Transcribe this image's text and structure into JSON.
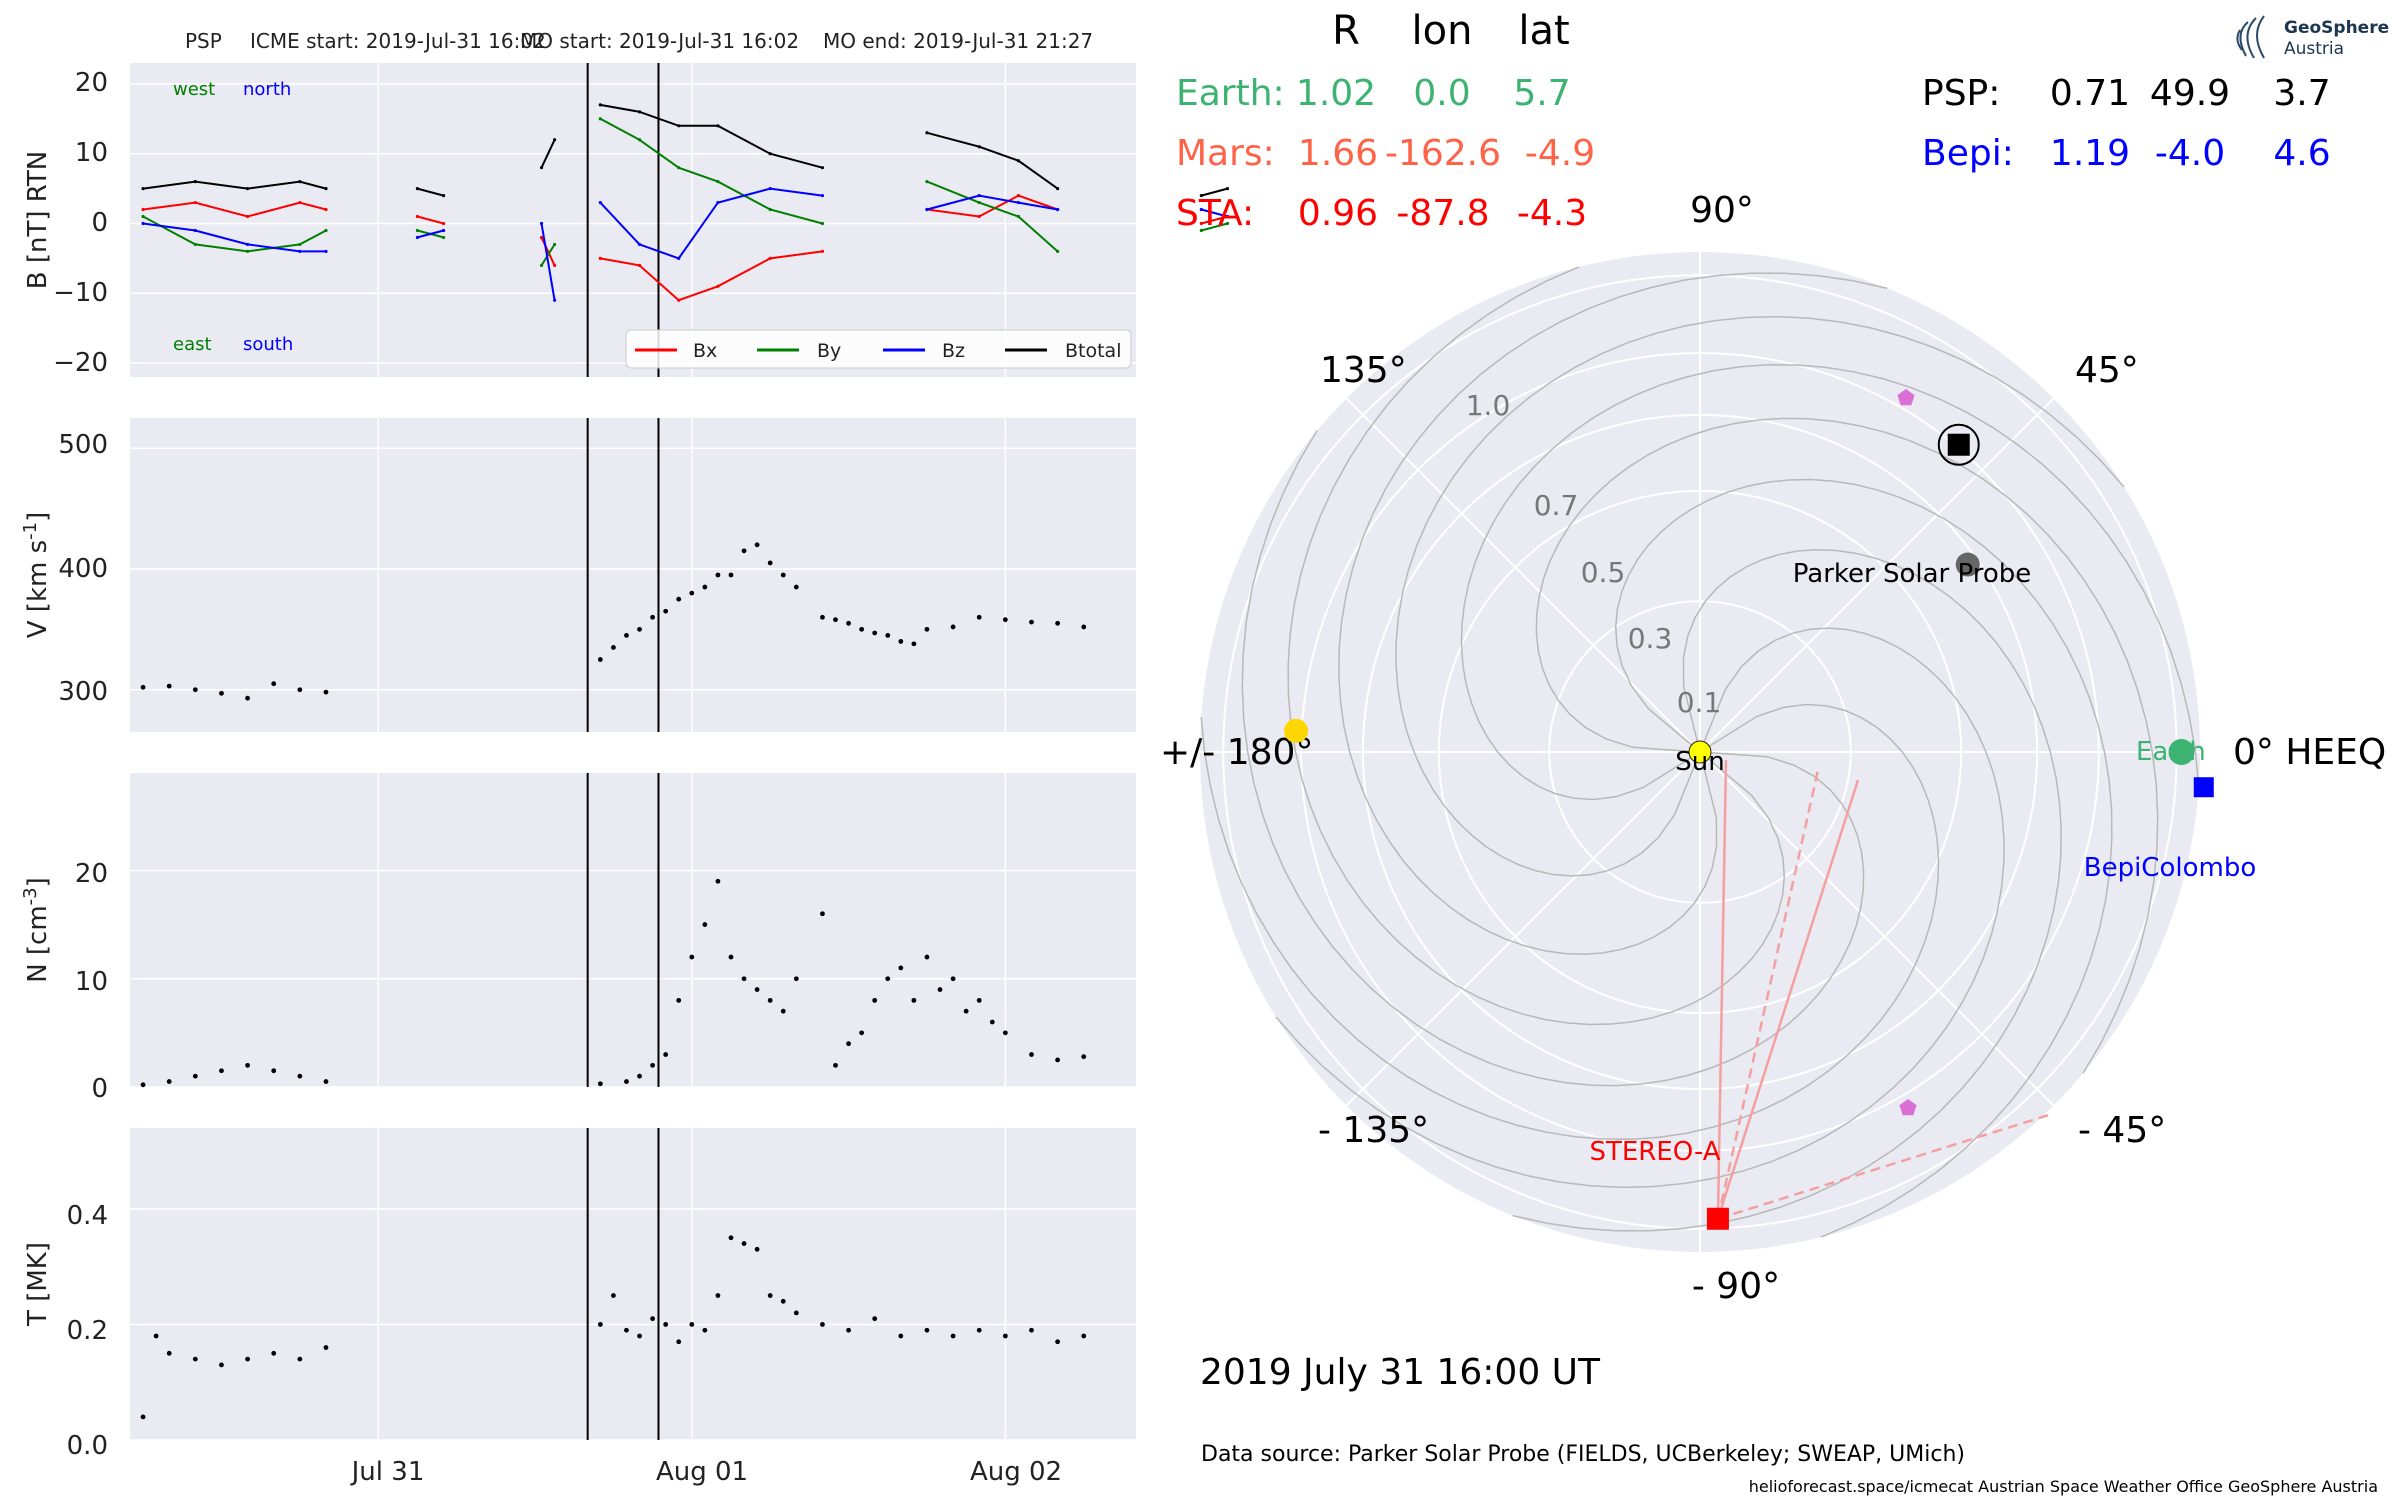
{
  "header": {
    "spacecraft": "PSP",
    "icme_start": "ICME start: 2019-Jul-31 16:02",
    "mo_start": "MO start: 2019-Jul-31 16:02",
    "mo_end": "MO end: 2019-Jul-31 21:27"
  },
  "logo": {
    "name": "GeoSphere",
    "sub": "Austria"
  },
  "panels": {
    "b_ylabel": "B [nT] RTN",
    "v_ylabel": "V [km s$^{-1}$]",
    "n_ylabel": "N [cm$^{-3}$]",
    "t_ylabel": "T [MK]",
    "x_ticks": [
      "Jul 31",
      "Aug 01",
      "Aug 02"
    ],
    "b_yticks": [
      "20",
      "10",
      "0",
      "−10",
      "−20"
    ],
    "v_yticks": [
      "500",
      "400",
      "300"
    ],
    "n_yticks": [
      "20",
      "10",
      "0"
    ],
    "t_yticks": [
      "0.4",
      "0.2",
      "0.0"
    ],
    "dir_west": "west",
    "dir_north": "north",
    "dir_east": "east",
    "dir_south": "south"
  },
  "legend": [
    "Bx",
    "By",
    "Bz",
    "Btotal"
  ],
  "colors": {
    "bx": "#ff0000",
    "by": "#008000",
    "bz": "#0000ff",
    "btotal": "#000000",
    "earth": "#3cb371",
    "mars": "#ff6347",
    "sta": "#ff0000",
    "bepi": "#0000ff",
    "psp": "#000000"
  },
  "positions": {
    "head_r": "R",
    "head_lon": "lon",
    "head_lat": "lat",
    "earth": {
      "label": "Earth:",
      "r": "1.02",
      "lon": "0.0",
      "lat": "5.7"
    },
    "mars": {
      "label": "Mars:",
      "r": "1.66",
      "lon": "-162.6",
      "lat": "-4.9"
    },
    "sta": {
      "label": "STA:",
      "r": "0.96",
      "lon": "-87.8",
      "lat": "-4.3"
    },
    "psp": {
      "label": "PSP:",
      "r": "0.71",
      "lon": "49.9",
      "lat": "3.7"
    },
    "bepi": {
      "label": "Bepi:",
      "r": "1.19",
      "lon": "-4.0",
      "lat": "4.6"
    }
  },
  "polar": {
    "angle_labels": {
      "a0": "0° HEEQ",
      "a45": "45°",
      "a90": "90°",
      "a135": "135°",
      "a180": "+/- 180°",
      "am135": "- 135°",
      "am90": "- 90°",
      "am45": "- 45°"
    },
    "radial_labels": [
      "0.1",
      "0.3",
      "0.5",
      "0.7",
      "1.0"
    ],
    "labels": {
      "sun": "Sun",
      "psp": "Parker Solar Probe",
      "earth": "Earth",
      "bepi": "BepiColombo",
      "sta": "STEREO-A"
    }
  },
  "date": "2019 July 31  16:00 UT",
  "source": "Data source: Parker Solar Probe (FIELDS, UCBerkeley; SWEAP, UMich)",
  "footer": "helioforecast.space/icmecat   Austrian Space Weather Office   GeoSphere Austria",
  "chart_data": [
    {
      "type": "line",
      "title": "PSP    ICME start: 2019-Jul-31 16:02   MO start: 2019-Jul-31 16:02   MO end: 2019-Jul-31 21:27",
      "ylabel": "B [nT] RTN",
      "ylim": [
        -22,
        23
      ],
      "xlim": [
        "2019-07-30 05:00",
        "2019-08-02 10:00"
      ],
      "x_unit": "hours after 2019-07-30 00:00",
      "event_lines": [
        "2019-07-31 16:02",
        "2019-07-31 21:27"
      ],
      "legend": "lower right",
      "grid": true,
      "segments": [
        [
          6,
          20
        ],
        [
          26,
          30
        ],
        [
          36,
          38
        ],
        [
          40,
          58
        ],
        [
          45,
          78
        ],
        [
          56,
          74
        ],
        [
          87,
          90
        ]
      ],
      "series": [
        {
          "name": "Bx",
          "x": [
            6,
            10,
            14,
            18,
            20,
            27,
            29,
            36.5,
            37.5,
            41,
            44,
            47,
            50,
            54,
            58,
            66,
            70,
            73,
            76,
            87,
            89
          ],
          "values": [
            2,
            3,
            1,
            3,
            2,
            1,
            0,
            -2,
            -6,
            -5,
            -6,
            -11,
            -9,
            -5,
            -4,
            2,
            1,
            4,
            2,
            0,
            1
          ]
        },
        {
          "name": "By",
          "x": [
            6,
            10,
            14,
            18,
            20,
            27,
            29,
            36.5,
            37.5,
            41,
            44,
            47,
            50,
            54,
            58,
            66,
            70,
            73,
            76,
            87,
            89
          ],
          "values": [
            1,
            -3,
            -4,
            -3,
            -1,
            -1,
            -2,
            -6,
            -3,
            15,
            12,
            8,
            6,
            2,
            0,
            6,
            3,
            1,
            -4,
            -1,
            0
          ]
        },
        {
          "name": "Bz",
          "x": [
            6,
            10,
            14,
            18,
            20,
            27,
            29,
            36.5,
            37.5,
            41,
            44,
            47,
            50,
            54,
            58,
            66,
            70,
            73,
            76,
            87,
            89
          ],
          "values": [
            0,
            -1,
            -3,
            -4,
            -4,
            -2,
            -1,
            0,
            -11,
            3,
            -3,
            -5,
            3,
            5,
            4,
            2,
            4,
            3,
            2,
            2,
            1
          ]
        },
        {
          "name": "Btotal",
          "x": [
            6,
            10,
            14,
            18,
            20,
            27,
            29,
            36.5,
            37.5,
            41,
            44,
            47,
            50,
            54,
            58,
            66,
            70,
            73,
            76,
            87,
            89
          ],
          "values": [
            5,
            6,
            5,
            6,
            5,
            5,
            4,
            8,
            12,
            17,
            16,
            14,
            14,
            10,
            8,
            13,
            11,
            9,
            5,
            4,
            5
          ]
        }
      ]
    },
    {
      "type": "scatter",
      "ylabel": "V [km s$^{-1}$]",
      "ylim": [
        265,
        525
      ],
      "series": [
        {
          "name": "V",
          "x": [
            6,
            8,
            10,
            12,
            14,
            16,
            18,
            20,
            41,
            42,
            43,
            44,
            45,
            46,
            47,
            48,
            49,
            50,
            51,
            52,
            53,
            54,
            55,
            56,
            58,
            59,
            60,
            61,
            62,
            63,
            64,
            65,
            66,
            68,
            70,
            72,
            74,
            76,
            78
          ],
          "values": [
            302,
            303,
            300,
            297,
            293,
            305,
            300,
            298,
            325,
            335,
            345,
            350,
            360,
            365,
            375,
            380,
            385,
            395,
            395,
            415,
            420,
            405,
            395,
            385,
            360,
            358,
            355,
            350,
            347,
            345,
            340,
            338,
            350,
            352,
            360,
            358,
            356,
            355,
            352
          ]
        }
      ]
    },
    {
      "type": "scatter",
      "ylabel": "N [cm$^{-3}$]",
      "ylim": [
        0,
        29
      ],
      "series": [
        {
          "name": "N",
          "x": [
            6,
            8,
            10,
            12,
            14,
            16,
            18,
            20,
            41,
            43,
            44,
            45,
            46,
            47,
            48,
            49,
            50,
            51,
            52,
            53,
            54,
            55,
            56,
            58,
            59,
            60,
            61,
            62,
            63,
            64,
            65,
            66,
            67,
            68,
            69,
            70,
            71,
            72,
            74,
            76,
            78
          ],
          "values": [
            0.2,
            0.5,
            1,
            1.5,
            2,
            1.5,
            1,
            0.5,
            0.3,
            0.5,
            1,
            2,
            3,
            8,
            12,
            15,
            19,
            12,
            10,
            9,
            8,
            7,
            10,
            16,
            2,
            4,
            5,
            8,
            10,
            11,
            8,
            12,
            9,
            10,
            7,
            8,
            6,
            5,
            3,
            2.5,
            2.8
          ]
        }
      ]
    },
    {
      "type": "scatter",
      "ylabel": "T [MK]",
      "ylim": [
        0,
        0.54
      ],
      "series": [
        {
          "name": "T",
          "x": [
            6,
            7,
            8,
            10,
            12,
            14,
            16,
            18,
            20,
            41,
            42,
            43,
            44,
            45,
            46,
            47,
            48,
            49,
            50,
            51,
            52,
            53,
            54,
            55,
            56,
            58,
            60,
            62,
            64,
            66,
            68,
            70,
            72,
            74,
            76,
            78
          ],
          "values": [
            0.04,
            0.18,
            0.15,
            0.14,
            0.13,
            0.14,
            0.15,
            0.14,
            0.16,
            0.2,
            0.25,
            0.19,
            0.18,
            0.21,
            0.2,
            0.17,
            0.2,
            0.19,
            0.25,
            0.35,
            0.34,
            0.33,
            0.25,
            0.24,
            0.22,
            0.2,
            0.19,
            0.21,
            0.18,
            0.19,
            0.18,
            0.19,
            0.18,
            0.19,
            0.17,
            0.18
          ]
        }
      ]
    },
    {
      "type": "scatter",
      "polar": true,
      "title": "2019 July 31  16:00 UT",
      "theta_unit": "deg HEEQ longitude",
      "r_unit": "AU",
      "rlim": [
        0,
        1.1
      ],
      "r_ticks": [
        0.1,
        0.3,
        0.5,
        0.7,
        1.0
      ],
      "points": [
        {
          "name": "Sun",
          "lon": 0,
          "r": 0
        },
        {
          "name": "Earth",
          "lon": 0.0,
          "r": 1.02
        },
        {
          "name": "Mars",
          "lon": -162.6,
          "r": 1.66
        },
        {
          "name": "STEREO-A",
          "lon": -87.8,
          "r": 0.96
        },
        {
          "name": "Parker Solar Probe",
          "lon": 49.9,
          "r": 0.71
        },
        {
          "name": "BepiColombo",
          "lon": -4.0,
          "r": 1.19
        },
        {
          "name": "Venus",
          "lon": 35.0,
          "r": 0.47
        },
        {
          "name": "Mercury",
          "lon": 177.0,
          "r": 0.72
        }
      ]
    }
  ]
}
